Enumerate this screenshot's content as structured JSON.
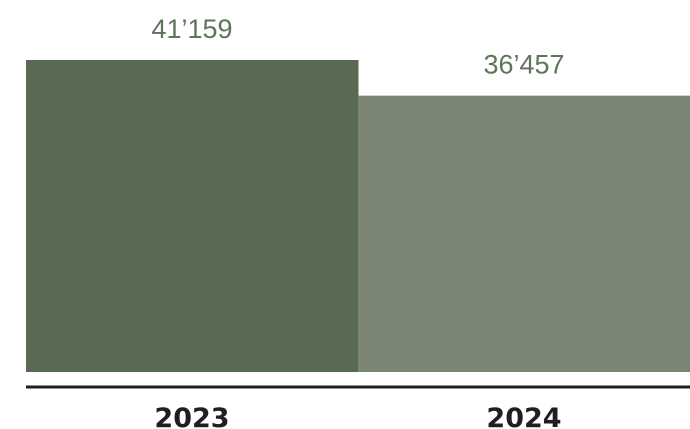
{
  "chart_data": {
    "type": "bar",
    "categories": [
      "2023",
      "2024"
    ],
    "values": [
      41159,
      36457
    ],
    "value_labels": [
      "41’159",
      "36’457"
    ],
    "colors": [
      "#586a51",
      "#7a8573"
    ],
    "axis_color": "#1f1f1f",
    "ylim": [
      0,
      41159
    ],
    "grid": false,
    "title": "",
    "xlabel": "",
    "ylabel": ""
  }
}
